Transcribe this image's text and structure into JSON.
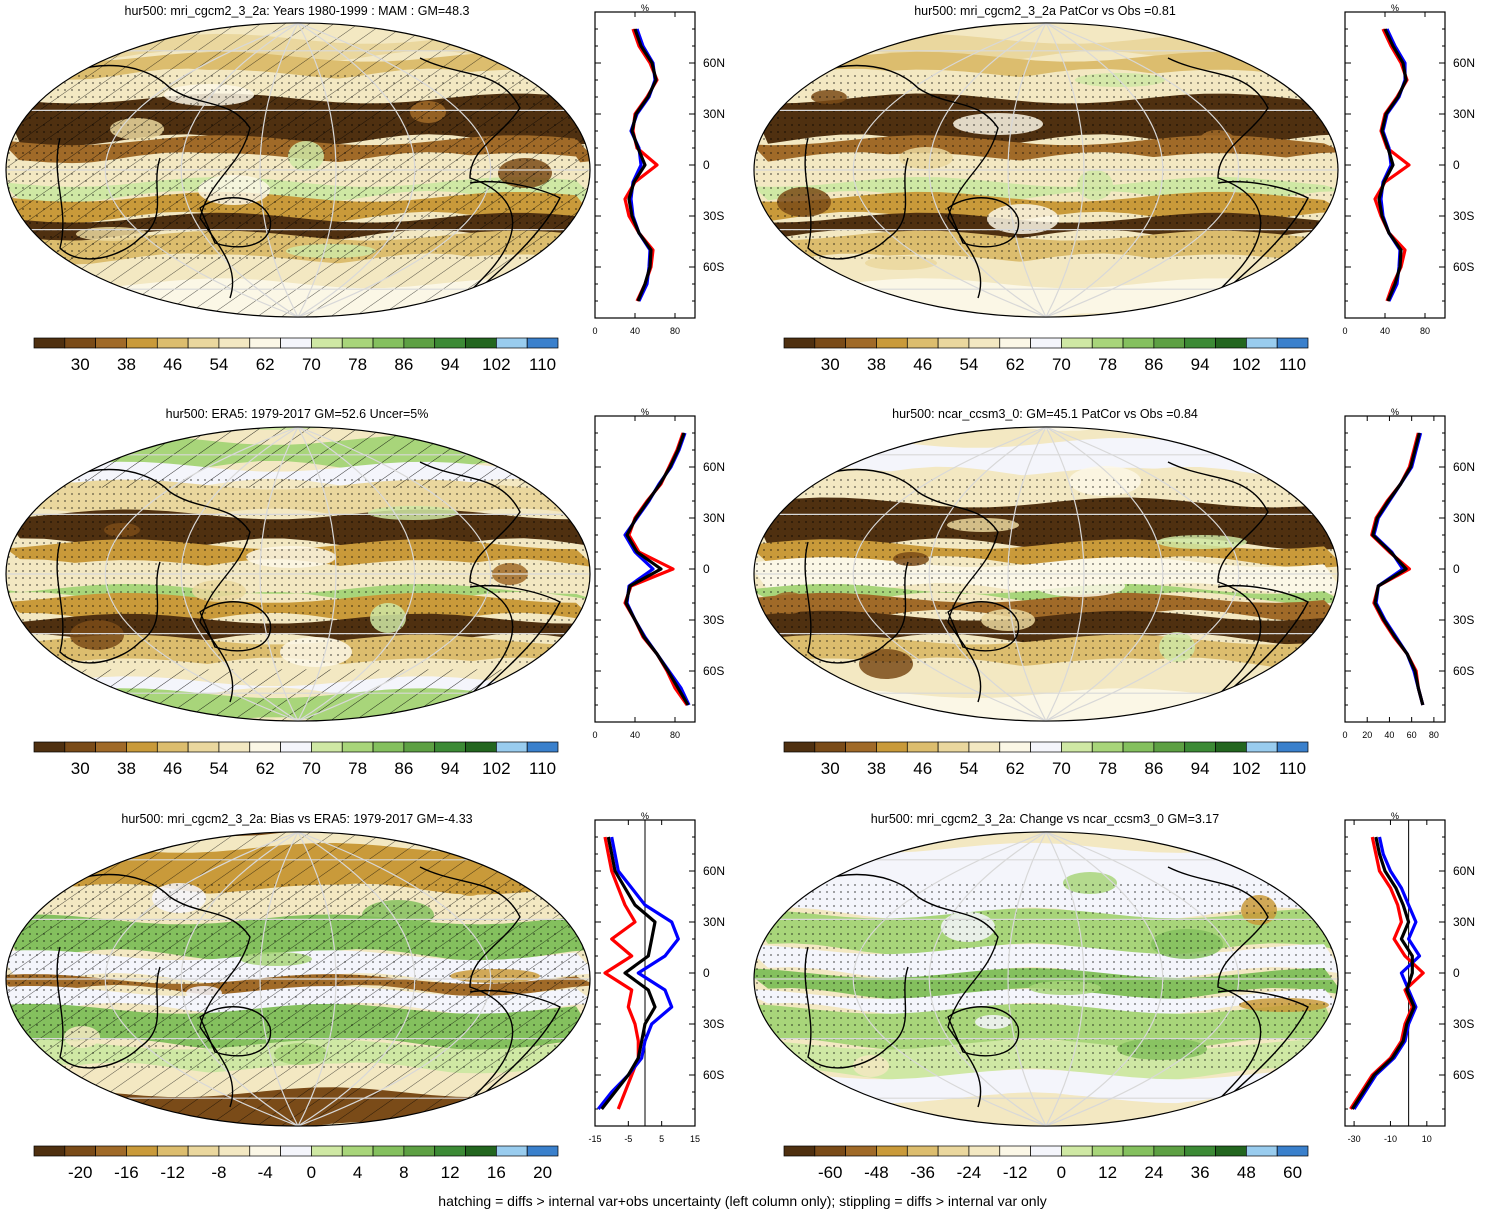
{
  "colors": {
    "brown_to_green": [
      "#4f3010",
      "#7a4b18",
      "#a06a28",
      "#c99a3a",
      "#dcbd6e",
      "#ead79e",
      "#f3e8c2",
      "#fbf7e6",
      "#f4f5fb",
      "#cfe8a4",
      "#a8d57a",
      "#84c05e",
      "#5da043",
      "#3c8a35",
      "#23661f",
      "#99ccee",
      "#3a80cc"
    ],
    "obs_line": "#ff0000",
    "model_line": "#0000ff",
    "mean_line": "#000000"
  },
  "colorbar_labels": {
    "abs": [
      "30",
      "38",
      "46",
      "54",
      "62",
      "70",
      "78",
      "86",
      "94",
      "102",
      "110"
    ],
    "bias": [
      "-20",
      "-16",
      "-12",
      "-8",
      "-4",
      "0",
      "4",
      "8",
      "12",
      "16",
      "20"
    ],
    "change": [
      "-60",
      "-48",
      "-36",
      "-24",
      "-12",
      "0",
      "12",
      "24",
      "36",
      "48",
      "60"
    ]
  },
  "lat_ticks": [
    "60N",
    "30N",
    "0",
    "30S",
    "60S"
  ],
  "panels": [
    {
      "title": "hur500: mri_cgcm2_3_2a: Years 1980-1999 : MAM : GM=48.3",
      "map_style": "abs",
      "hatch": "heavy",
      "cbar": "abs",
      "profile": {
        "unit": "%",
        "xlim": [
          0,
          100
        ],
        "xticks": [
          "0",
          "40",
          "80"
        ],
        "ref_line": null
      },
      "chart_data": {
        "type": "line",
        "lat": [
          80,
          70,
          60,
          50,
          40,
          30,
          20,
          10,
          0,
          -10,
          -20,
          -30,
          -40,
          -50,
          -60,
          -70,
          -80
        ],
        "series": [
          {
            "color_key": "obs_line",
            "values": [
              38,
              44,
              55,
              62,
              52,
              40,
              38,
              42,
              62,
              40,
              30,
              34,
              44,
              58,
              56,
              50,
              42
            ]
          },
          {
            "color_key": "model_line",
            "values": [
              42,
              48,
              58,
              60,
              54,
              42,
              36,
              44,
              46,
              38,
              36,
              38,
              44,
              55,
              54,
              52,
              44
            ]
          },
          {
            "color_key": "mean_line",
            "values": [
              40,
              46,
              57,
              61,
              53,
              41,
              37,
              43,
              50,
              39,
              34,
              37,
              44,
              56,
              55,
              50,
              43
            ]
          }
        ]
      }
    },
    {
      "title": "hur500: mri_cgcm2_3_2a PatCor vs Obs =0.81",
      "map_style": "abs",
      "hatch": "none",
      "cbar": "abs",
      "profile": {
        "unit": "%",
        "xlim": [
          0,
          100
        ],
        "xticks": [
          "0",
          "40",
          "80"
        ],
        "ref_line": null
      },
      "chart_data": {
        "type": "line",
        "lat": [
          80,
          70,
          60,
          50,
          40,
          30,
          20,
          10,
          0,
          -10,
          -20,
          -30,
          -40,
          -50,
          -60,
          -70,
          -80
        ],
        "series": [
          {
            "color_key": "obs_line",
            "values": [
              38,
              46,
              56,
              62,
              52,
              40,
              36,
              42,
              64,
              40,
              30,
              36,
              44,
              60,
              56,
              48,
              42
            ]
          },
          {
            "color_key": "model_line",
            "values": [
              42,
              50,
              60,
              60,
              54,
              42,
              38,
              44,
              46,
              38,
              36,
              38,
              44,
              55,
              54,
              52,
              44
            ]
          },
          {
            "color_key": "mean_line",
            "values": [
              40,
              48,
              58,
              61,
              53,
              41,
              37,
              43,
              48,
              39,
              34,
              37,
              44,
              56,
              55,
              50,
              43
            ]
          }
        ]
      }
    },
    {
      "title": "hur500: ERA5: 1979-2017 GM=52.6 Uncer=5%",
      "map_style": "era",
      "hatch": "poles",
      "cbar": "abs",
      "profile": {
        "unit": "%",
        "xlim": [
          0,
          100
        ],
        "xticks": [
          "0",
          "40",
          "80"
        ],
        "ref_line": null
      },
      "chart_data": {
        "type": "line",
        "lat": [
          80,
          70,
          60,
          50,
          40,
          30,
          20,
          10,
          0,
          -10,
          -20,
          -30,
          -40,
          -50,
          -60,
          -70,
          -80
        ],
        "series": [
          {
            "color_key": "obs_line",
            "values": [
              88,
              82,
              74,
              66,
              52,
              40,
              34,
              44,
              78,
              36,
              30,
              40,
              48,
              62,
              72,
              80,
              92
            ]
          },
          {
            "color_key": "model_line",
            "values": [
              90,
              84,
              76,
              64,
              54,
              42,
              30,
              40,
              58,
              34,
              32,
              40,
              50,
              62,
              74,
              86,
              94
            ]
          },
          {
            "color_key": "mean_line",
            "values": [
              89,
              83,
              75,
              65,
              53,
              41,
              32,
              42,
              66,
              35,
              31,
              40,
              49,
              62,
              73,
              83,
              93
            ]
          }
        ]
      }
    },
    {
      "title": "hur500: ncar_ccsm3_0: GM=45.1 PatCor vs Obs =0.84",
      "map_style": "abs2",
      "hatch": "none",
      "cbar": "abs",
      "profile": {
        "unit": "%",
        "xlim": [
          0,
          90
        ],
        "xticks": [
          "0",
          "20",
          "40",
          "60",
          "80"
        ],
        "ref_line": null
      },
      "chart_data": {
        "type": "line",
        "lat": [
          80,
          70,
          60,
          50,
          40,
          30,
          20,
          10,
          0,
          -10,
          -20,
          -30,
          -40,
          -50,
          -60,
          -70,
          -80
        ],
        "series": [
          {
            "color_key": "obs_line",
            "values": [
              66,
              62,
              58,
              50,
              38,
              28,
              24,
              40,
              58,
              30,
              26,
              34,
              44,
              56,
              64,
              66,
              70
            ]
          },
          {
            "color_key": "model_line",
            "values": [
              68,
              64,
              60,
              50,
              40,
              30,
              26,
              42,
              52,
              30,
              28,
              36,
              46,
              56,
              62,
              66,
              70
            ]
          },
          {
            "color_key": "mean_line",
            "values": [
              67,
              63,
              59,
              50,
              39,
              29,
              25,
              41,
              55,
              30,
              27,
              35,
              45,
              56,
              63,
              66,
              70
            ]
          }
        ]
      }
    },
    {
      "title": "hur500: mri_cgcm2_3_2a: Bias vs ERA5: 1979-2017 GM=-4.33",
      "map_style": "bias",
      "hatch": "heavy",
      "cbar": "bias",
      "profile": {
        "unit": "%",
        "xlim": [
          -15,
          15
        ],
        "xticks": [
          "-15",
          "-5",
          "5",
          "15"
        ],
        "ref_line": 0
      },
      "chart_data": {
        "type": "line",
        "lat": [
          80,
          70,
          60,
          50,
          40,
          30,
          20,
          10,
          0,
          -10,
          -20,
          -30,
          -40,
          -50,
          -60,
          -70,
          -80
        ],
        "series": [
          {
            "color_key": "obs_line",
            "values": [
              -12,
              -11,
              -10,
              -8,
              -6,
              -3,
              -10,
              -4,
              -12,
              -4,
              -5,
              -3,
              -2,
              -2,
              -4,
              -6,
              -8
            ]
          },
          {
            "color_key": "model_line",
            "values": [
              -10,
              -9,
              -8,
              -4,
              0,
              8,
              10,
              6,
              -2,
              6,
              8,
              2,
              0,
              -1,
              -5,
              -10,
              -14
            ]
          },
          {
            "color_key": "mean_line",
            "values": [
              -11,
              -10,
              -9,
              -6,
              -3,
              3,
              2,
              1,
              -6,
              1,
              3,
              0,
              -1,
              -2,
              -5,
              -9,
              -13
            ]
          }
        ]
      }
    },
    {
      "title": "hur500: mri_cgcm2_3_2a: Change vs ncar_ccsm3_0 GM=3.17",
      "map_style": "change",
      "hatch": "none",
      "cbar": "change",
      "profile": {
        "unit": "%",
        "xlim": [
          -35,
          20
        ],
        "xticks": [
          "-30",
          "-10",
          "10"
        ],
        "ref_line": 0
      },
      "chart_data": {
        "type": "line",
        "lat": [
          80,
          70,
          60,
          50,
          40,
          30,
          20,
          10,
          0,
          -10,
          -20,
          -30,
          -40,
          -50,
          -60,
          -70,
          -80
        ],
        "series": [
          {
            "color_key": "obs_line",
            "values": [
              -20,
              -18,
              -16,
              -10,
              -6,
              -4,
              -8,
              -2,
              8,
              -2,
              2,
              -2,
              -4,
              -10,
              -20,
              -26,
              -32
            ]
          },
          {
            "color_key": "model_line",
            "values": [
              -16,
              -14,
              -10,
              -4,
              0,
              4,
              0,
              6,
              -4,
              0,
              4,
              0,
              -2,
              -8,
              -18,
              -24,
              -30
            ]
          },
          {
            "color_key": "mean_line",
            "values": [
              -18,
              -16,
              -13,
              -7,
              -3,
              0,
              -4,
              2,
              2,
              -1,
              3,
              -1,
              -3,
              -9,
              -19,
              -25,
              -31
            ]
          }
        ]
      }
    }
  ],
  "footer": "hatching = diffs > internal var+obs uncertainty (left column only); stippling = diffs > internal var only"
}
